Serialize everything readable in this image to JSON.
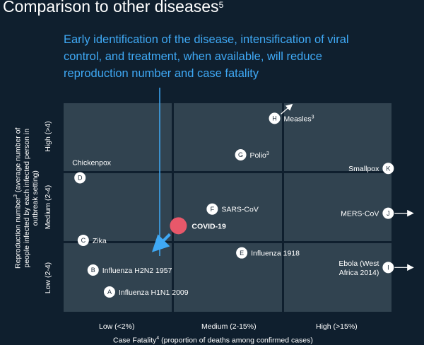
{
  "title": "Comparison to other diseases",
  "title_sup": "5",
  "callout": "Early identification of the disease, intensification of viral control, and treatment, when available, will reduce reproduction number and case fatality",
  "colors": {
    "background": "#0f1f2e",
    "cell": "#314350",
    "accent_blue": "#3fa9f5",
    "covid": "#e8586a",
    "text": "#ffffff"
  },
  "chart_data": {
    "type": "scatter",
    "title": "Comparison to other diseases",
    "xlabel_main": "Case Fatality",
    "xlabel_sup": "4",
    "xlabel_rest": " (proportion of deaths among confirmed cases)",
    "ylabel_main": "Reproduction number",
    "ylabel_sup": "3",
    "ylabel_rest": " (average number of people infected by each infected person in outbreak setting)",
    "x_categories": [
      "Low (<2%)",
      "Medium (2-15%)",
      "High (>15%)"
    ],
    "y_categories": [
      "Low (2-4)",
      "Medium (2-4)",
      "High (>4)"
    ],
    "points": [
      {
        "id": "A",
        "name": "Influenza H1N1 2009",
        "x": 0.42,
        "y": 0.38,
        "label_side": "right",
        "badge": true
      },
      {
        "id": "B",
        "name": "Influenza H2N2 1957",
        "x": 0.27,
        "y": 0.8,
        "label_side": "right",
        "badge": true
      },
      {
        "id": "C",
        "name": "Zika",
        "x": 0.18,
        "y": 1.37,
        "label_side": "right",
        "badge": true
      },
      {
        "id": "D",
        "name": "Chickenpox",
        "x": 0.15,
        "y": 2.57,
        "label_side": "above",
        "badge": true
      },
      {
        "id": "E",
        "name": "Influenza 1918",
        "x": 1.63,
        "y": 1.13,
        "label_side": "right",
        "badge": true
      },
      {
        "id": "F",
        "name": "SARS-CoV",
        "x": 1.36,
        "y": 1.97,
        "label_side": "right",
        "badge": true
      },
      {
        "id": "G",
        "name": "Polio",
        "sup": "3",
        "x": 1.62,
        "y": 3.01,
        "label_side": "right",
        "badge": true
      },
      {
        "id": "H",
        "name": "Measles",
        "sup": "3",
        "x": 1.93,
        "y": 3.71,
        "label_side": "right",
        "badge": true,
        "arrow": "up-right"
      },
      {
        "id": "I",
        "name": "Ebola (West Africa 2014)",
        "x": 2.97,
        "y": 0.85,
        "label_side": "left",
        "badge": true,
        "arrow": "right"
      },
      {
        "id": "J",
        "name": "MERS-CoV",
        "x": 2.97,
        "y": 1.89,
        "label_side": "left",
        "badge": true,
        "arrow": "right"
      },
      {
        "id": "K",
        "name": "Smallpox",
        "x": 2.97,
        "y": 2.75,
        "label_side": "left",
        "badge": true
      },
      {
        "id": "",
        "name": "COVID-19",
        "x": 1.05,
        "y": 1.65,
        "label_side": "right",
        "badge": false,
        "highlight": true
      }
    ],
    "xlim": [
      0,
      3
    ],
    "ylim": [
      0,
      4.0
    ]
  }
}
